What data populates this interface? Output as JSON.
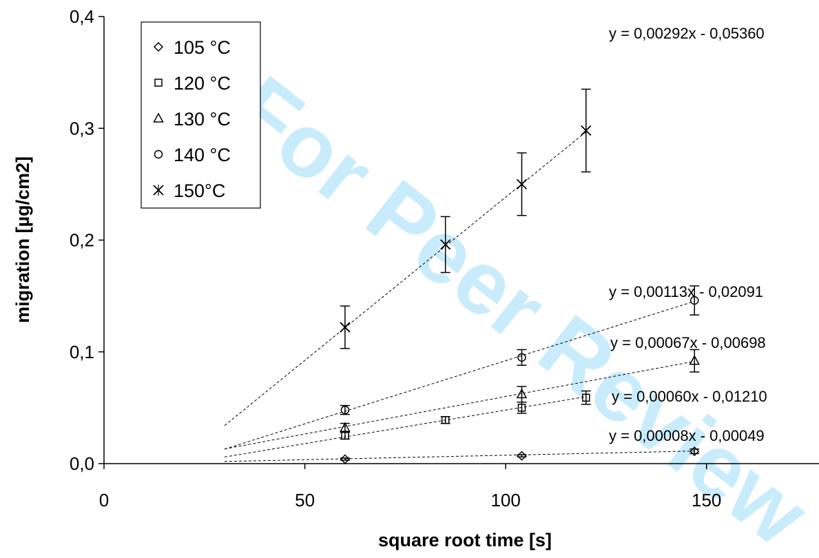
{
  "watermark": "For Peer Review",
  "chart_data": {
    "type": "scatter",
    "title": "",
    "xlabel": "square root time [s]",
    "ylabel": "migration [µg/cm2]",
    "xlim": [
      0,
      178
    ],
    "ylim": [
      0,
      0.4
    ],
    "x_ticks": [
      0,
      50,
      100,
      150
    ],
    "x_tick_labels": [
      "0",
      "50",
      "100",
      "150"
    ],
    "y_ticks": [
      0,
      0.1,
      0.2,
      0.3,
      0.4
    ],
    "y_tick_labels": [
      "0,0",
      "0,1",
      "0,2",
      "0,3",
      "0,4"
    ],
    "grid": false,
    "legend_position": "top-left",
    "trendline_x_start": 30,
    "series": [
      {
        "name": "105 °C",
        "marker": "diamond",
        "x": [
          60,
          104,
          147
        ],
        "y": [
          0.004,
          0.007,
          0.011
        ],
        "err": [
          0.001,
          0.001,
          0.002
        ],
        "trend": {
          "slope": 8e-05,
          "intercept": -0.00049,
          "label": "y = 0,00008x - 0,00049"
        }
      },
      {
        "name": "120 °C",
        "marker": "square",
        "x": [
          60,
          85,
          104,
          120
        ],
        "y": [
          0.025,
          0.039,
          0.05,
          0.059
        ],
        "err": [
          0.003,
          0.003,
          0.005,
          0.006
        ],
        "trend": {
          "slope": 0.0006,
          "intercept": -0.0121,
          "label": "y = 0,00060x - 0,01210"
        }
      },
      {
        "name": "130 °C",
        "marker": "triangle",
        "x": [
          60,
          104,
          147
        ],
        "y": [
          0.032,
          0.062,
          0.092
        ],
        "err": [
          0.004,
          0.007,
          0.01
        ],
        "trend": {
          "slope": 0.00067,
          "intercept": -0.00698,
          "label": "y = 0,00067x - 0,00698"
        }
      },
      {
        "name": "140 °C",
        "marker": "circle",
        "x": [
          60,
          104,
          147
        ],
        "y": [
          0.048,
          0.095,
          0.146
        ],
        "err": [
          0.004,
          0.007,
          0.013
        ],
        "trend": {
          "slope": 0.00113,
          "intercept": -0.02091,
          "label": "y = 0,00113x - 0,02091"
        }
      },
      {
        "name": "150°C",
        "marker": "star",
        "x": [
          60,
          85,
          104,
          120
        ],
        "y": [
          0.122,
          0.196,
          0.25,
          0.298
        ],
        "err": [
          0.019,
          0.025,
          0.028,
          0.037
        ],
        "trend": {
          "slope": 0.00292,
          "intercept": -0.0536,
          "label": "y = 0,00292x - 0,05360"
        }
      }
    ]
  }
}
